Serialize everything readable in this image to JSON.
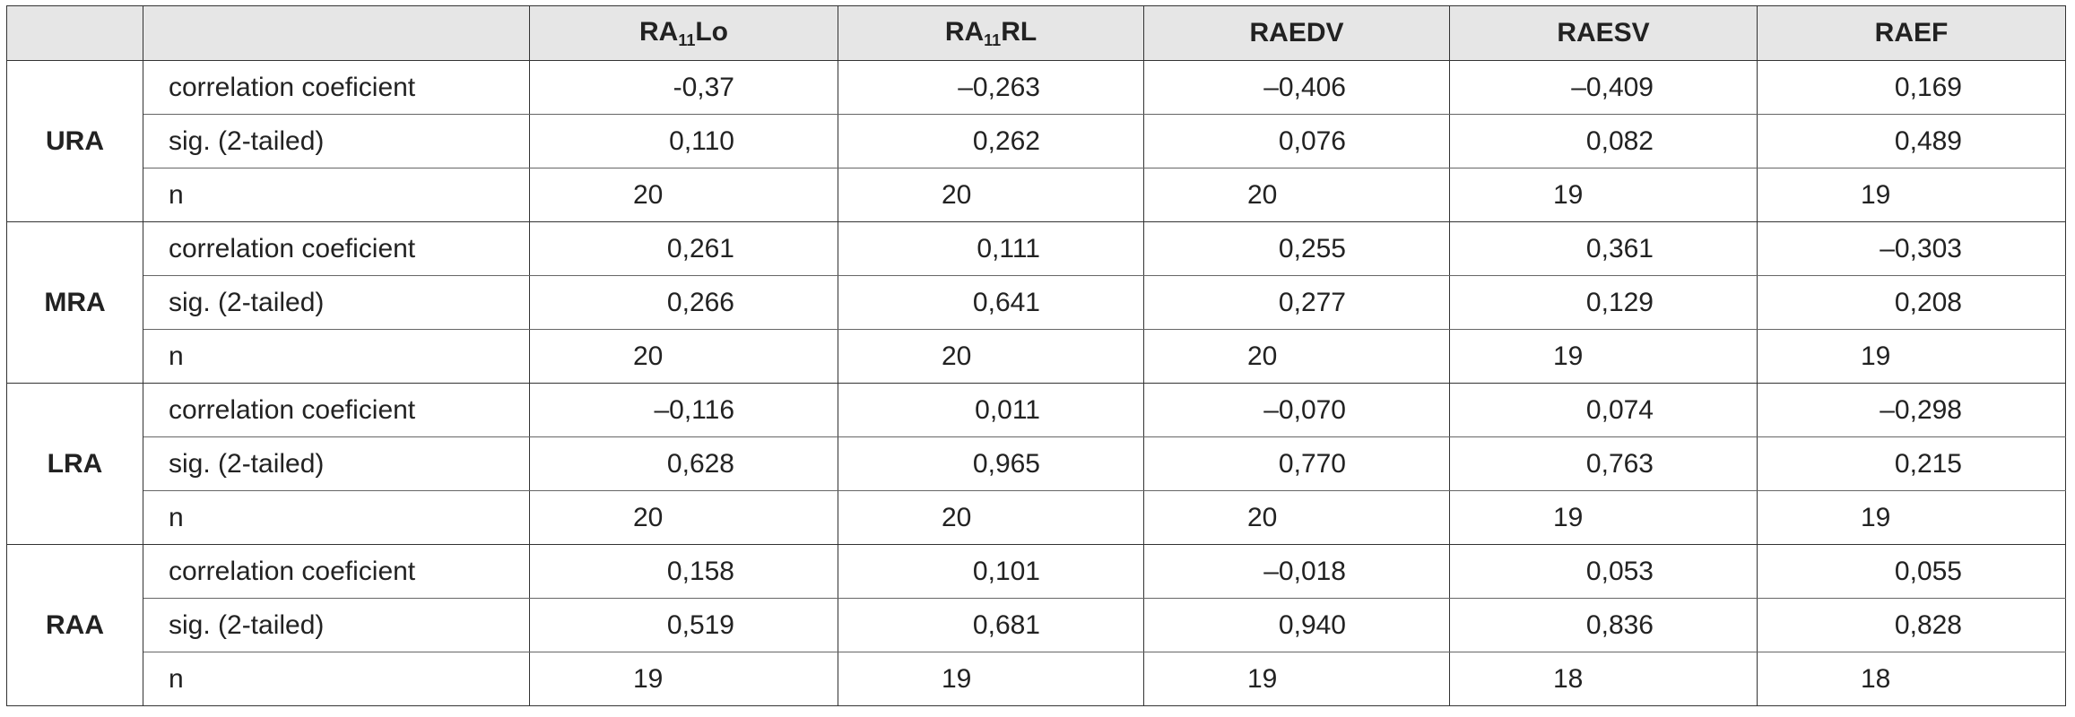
{
  "table": {
    "columns": [
      {
        "main": "RA",
        "sub": "11",
        "tail": "Lo"
      },
      {
        "main": "RA",
        "sub": "11",
        "tail": "RL"
      },
      {
        "main": "RAEDV"
      },
      {
        "main": "RAESV"
      },
      {
        "main": "RAEF"
      }
    ],
    "groups": [
      {
        "name": "URA",
        "rows": [
          {
            "label": "correlation coeficient",
            "values": [
              "-0,37",
              "–0,263",
              "–0,406",
              "–0,409",
              "0,169"
            ]
          },
          {
            "label": "sig. (2-tailed)",
            "values": [
              "0,110",
              "0,262",
              "0,076",
              "0,082",
              "0,489"
            ]
          },
          {
            "label": "n",
            "values": [
              "20",
              "20",
              "20",
              "19",
              "19"
            ]
          }
        ]
      },
      {
        "name": "MRA",
        "rows": [
          {
            "label": "correlation coeficient",
            "values": [
              "0,261",
              "0,111",
              "0,255",
              "0,361",
              "–0,303"
            ]
          },
          {
            "label": "sig. (2-tailed)",
            "values": [
              "0,266",
              "0,641",
              "0,277",
              "0,129",
              "0,208"
            ]
          },
          {
            "label": "n",
            "values": [
              "20",
              "20",
              "20",
              "19",
              "19"
            ]
          }
        ]
      },
      {
        "name": "LRA",
        "rows": [
          {
            "label": "correlation coeficient",
            "values": [
              "–0,116",
              "0,011",
              "–0,070",
              "0,074",
              "–0,298"
            ]
          },
          {
            "label": "sig. (2-tailed)",
            "values": [
              "0,628",
              "0,965",
              "0,770",
              "0,763",
              "0,215"
            ]
          },
          {
            "label": "n",
            "values": [
              "20",
              "20",
              "20",
              "19",
              "19"
            ]
          }
        ]
      },
      {
        "name": "RAA",
        "rows": [
          {
            "label": "correlation coeficient",
            "values": [
              "0,158",
              "0,101",
              "–0,018",
              "0,053",
              "0,055"
            ]
          },
          {
            "label": "sig. (2-tailed)",
            "values": [
              "0,519",
              "0,681",
              "0,940",
              "0,836",
              "0,828"
            ]
          },
          {
            "label": "n",
            "values": [
              "19",
              "19",
              "19",
              "18",
              "18"
            ]
          }
        ]
      }
    ]
  }
}
